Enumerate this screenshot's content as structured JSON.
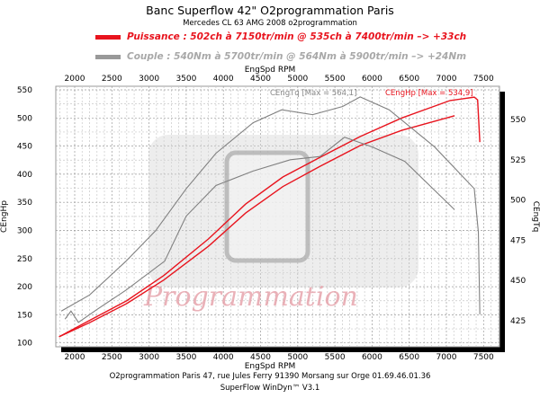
{
  "header": {
    "title": "Banc Superflow 42\" O2programmation Paris",
    "subtitle": "Mercedes CL 63 AMG 2008 o2programmation",
    "legend_power": "Puissance : 502ch à 7150tr/min @ 535ch à 7400tr/min  –> +33ch",
    "legend_torque": "Couple :  540Nm à 5700tr/min @ 564Nm à 5900tr/min –> +24Nm"
  },
  "footer": {
    "line1": "O2programmation Paris 47, rue Jules Ferry 91390 Morsang sur Orge 01.69.46.01.36",
    "line2": "SuperFlow WinDyn™ V3.1"
  },
  "watermark": "Programmation",
  "colors": {
    "power": "#e8141e",
    "torque": "#808080"
  },
  "chart_data": {
    "type": "line",
    "xlabel": "EngSpd RPM",
    "ylabel_left": "CEngHp",
    "ylabel_right": "CEngTq",
    "xlim": [
      1750,
      7720
    ],
    "ylim_left": [
      95,
      555
    ],
    "ylim_right": [
      410,
      565
    ],
    "xticks": [
      2000,
      2500,
      3000,
      3500,
      4000,
      4500,
      5000,
      5500,
      6000,
      6500,
      7000,
      7500
    ],
    "yticks_left": [
      100,
      150,
      200,
      250,
      300,
      350,
      400,
      450,
      500,
      550
    ],
    "yticks_right": [
      425,
      450,
      475,
      500,
      525,
      550
    ],
    "grid": true,
    "annotations": [
      "CEngTq [Max = 564,1]",
      "CEngHp [Max = 534,9]"
    ],
    "series": [
      {
        "name": "CEngHp after",
        "axis": "left",
        "color": "#e8141e",
        "x": [
          1790,
          2200,
          2700,
          3200,
          3800,
          4300,
          4800,
          5300,
          5840,
          6400,
          7050,
          7375,
          7420,
          7450
        ],
        "y": [
          111,
          140,
          175,
          220,
          285,
          347,
          395,
          430,
          467,
          500,
          531,
          537,
          532,
          457
        ]
      },
      {
        "name": "CEngHp before",
        "axis": "left",
        "color": "#e8141e",
        "x": [
          1790,
          2200,
          2700,
          3200,
          3800,
          4300,
          4800,
          5300,
          5840,
          6400,
          7110
        ],
        "y": [
          111,
          136,
          170,
          212,
          272,
          331,
          378,
          414,
          451,
          478,
          504
        ]
      },
      {
        "name": "CEngTq after",
        "axis": "right",
        "color": "#808080",
        "x": [
          1820,
          2200,
          2690,
          3090,
          3500,
          3900,
          4400,
          4785,
          5200,
          5600,
          5840,
          6230,
          6840,
          7375,
          7430,
          7450
        ],
        "y": [
          431,
          441,
          462,
          481,
          507,
          529,
          548,
          556,
          553,
          558,
          564,
          556,
          533,
          507,
          480,
          429
        ]
      },
      {
        "name": "CEngTq before",
        "axis": "right",
        "color": "#808080",
        "x": [
          1870,
          1950,
          2050,
          2300,
          2690,
          3210,
          3500,
          3900,
          4400,
          4900,
          5300,
          5630,
          6000,
          6440,
          7110
        ],
        "y": [
          426,
          431,
          424,
          432,
          444,
          462,
          490,
          509,
          518,
          525,
          527,
          539,
          533,
          524,
          494
        ]
      }
    ]
  }
}
